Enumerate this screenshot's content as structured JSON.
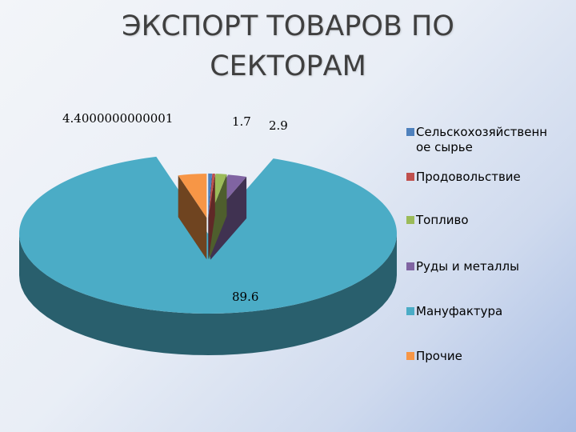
{
  "title_lines": [
    "ЭКСПОРТ ТОВАРОВ ПО",
    "СЕКТОРАМ"
  ],
  "chart_data": {
    "type": "pie",
    "title": "ЭКСПОРТ ТОВАРОВ ПО СЕКТОРАМ",
    "legend_position": "right",
    "categories": [
      "Сельскохозяйственное сырье",
      "Продовольствие",
      "Топливо",
      "Руды и металлы",
      "Мануфактура",
      "Прочие"
    ],
    "values": [
      0.6,
      0.4,
      1.7,
      2.9,
      89.6,
      4.4
    ],
    "data_labels": [
      "",
      "",
      "1.7",
      "2.9",
      "89.6",
      "4.4000000000001"
    ],
    "colors": [
      "#4f81bd",
      "#c0504d",
      "#9bbb59",
      "#8064a2",
      "#4bacc6",
      "#f79646"
    ],
    "legend": [
      {
        "lines": [
          "Сельскохозяйственн",
          "ое сырье"
        ]
      },
      {
        "lines": [
          "Продовольствие"
        ]
      },
      {
        "lines": [
          "Топливо"
        ]
      },
      {
        "lines": [
          "Руды и металлы"
        ]
      },
      {
        "lines": [
          "Мануфактура"
        ]
      },
      {
        "lines": [
          "Прочие"
        ]
      }
    ]
  }
}
